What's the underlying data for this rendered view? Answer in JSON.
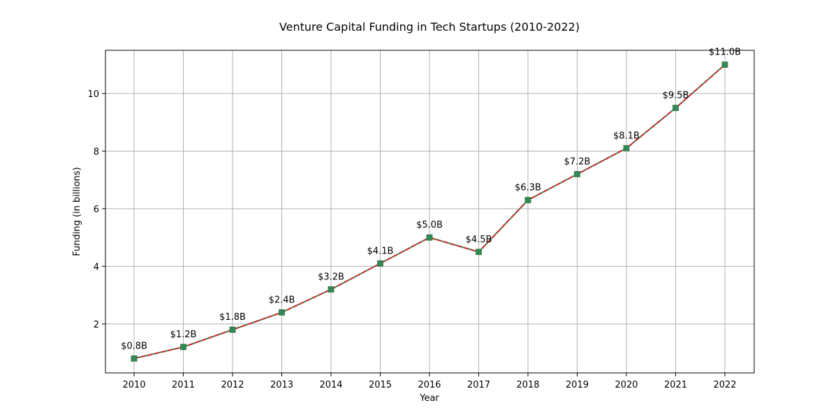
{
  "chart_data": {
    "type": "line",
    "title": "Venture Capital Funding in Tech Startups (2010-2022)",
    "xlabel": "Year",
    "ylabel": "Funding (in billions)",
    "categories": [
      "2010",
      "2011",
      "2012",
      "2013",
      "2014",
      "2015",
      "2016",
      "2017",
      "2018",
      "2019",
      "2020",
      "2021",
      "2022"
    ],
    "values": [
      0.8,
      1.2,
      1.8,
      2.4,
      3.2,
      4.1,
      5.0,
      4.5,
      6.3,
      7.2,
      8.1,
      9.5,
      11.0
    ],
    "data_labels": [
      "$0.8B",
      "$1.2B",
      "$1.8B",
      "$2.4B",
      "$3.2B",
      "$4.1B",
      "$5.0B",
      "$4.5B",
      "$6.3B",
      "$7.2B",
      "$8.1B",
      "$9.5B",
      "$11.0B"
    ],
    "ylim": [
      0.3,
      11.5
    ],
    "yticks": [
      2,
      4,
      6,
      8,
      10
    ],
    "grid": true,
    "line_color": "#d62728",
    "line_style": "dashed",
    "marker": "square",
    "marker_color": "#2e8b57"
  }
}
